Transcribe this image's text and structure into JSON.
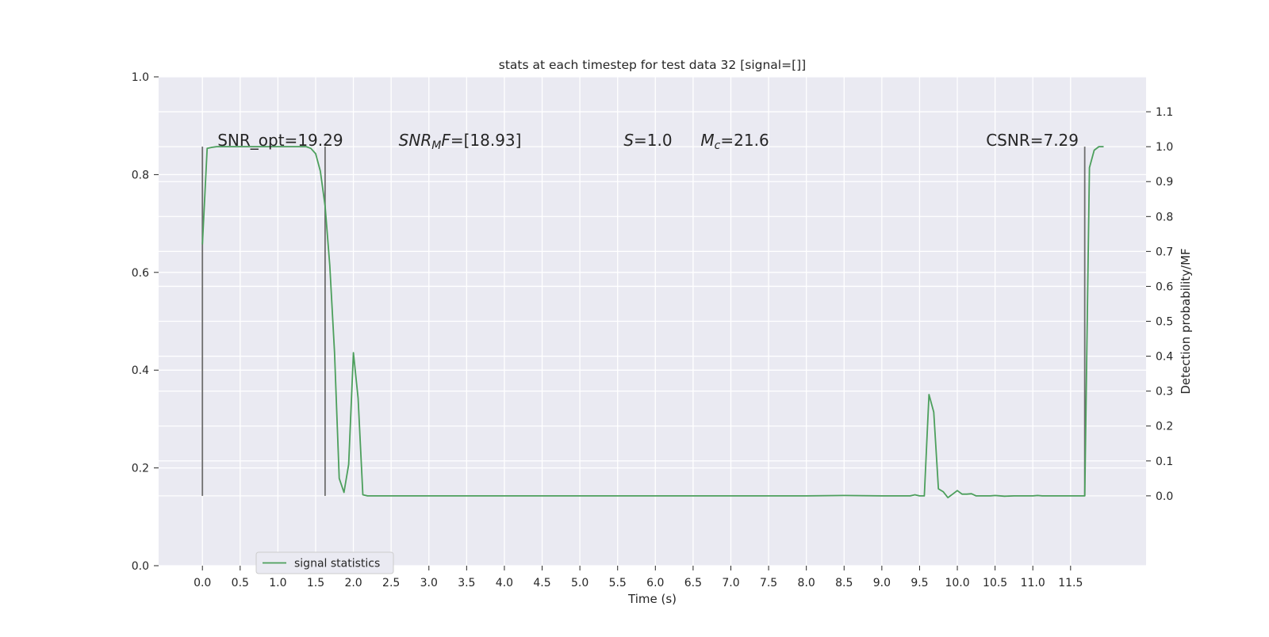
{
  "chart_data": {
    "type": "line",
    "title": "stats at each timestep for test data 32 [signal=[]]",
    "xlabel": "Time (s)",
    "ylabel_right": "Detection probability/MF",
    "xlim": [
      -0.58,
      12.5
    ],
    "ylim_left": [
      0.0,
      1.0
    ],
    "ylim_right": [
      -0.2,
      1.2
    ],
    "x_ticks": [
      0.0,
      0.5,
      1.0,
      1.5,
      2.0,
      2.5,
      3.0,
      3.5,
      4.0,
      4.5,
      5.0,
      5.5,
      6.0,
      6.5,
      7.0,
      7.5,
      8.0,
      8.5,
      9.0,
      9.5,
      10.0,
      10.5,
      11.0,
      11.5
    ],
    "x_tick_labels": [
      "0.0",
      "0.5",
      "1.0",
      "1.5",
      "2.0",
      "2.5",
      "3.0",
      "3.5",
      "4.0",
      "4.5",
      "5.0",
      "5.5",
      "6.0",
      "6.5",
      "7.0",
      "7.5",
      "8.0",
      "8.5",
      "9.0",
      "9.5",
      "10.0",
      "10.5",
      "11.0",
      "11.5"
    ],
    "y_left_ticks": [
      0.0,
      0.2,
      0.4,
      0.6,
      0.8,
      1.0
    ],
    "y_left_tick_labels": [
      "0.0",
      "0.2",
      "0.4",
      "0.6",
      "0.8",
      "1.0"
    ],
    "y_right_ticks": [
      0.0,
      0.1,
      0.2,
      0.3,
      0.4,
      0.5,
      0.6,
      0.7,
      0.8,
      0.9,
      1.0,
      1.1
    ],
    "y_right_tick_labels": [
      "0.0",
      "0.1",
      "0.2",
      "0.3",
      "0.4",
      "0.5",
      "0.6",
      "0.7",
      "0.8",
      "0.9",
      "1.0",
      "1.1"
    ],
    "grid": true,
    "background": "#eaeaf2",
    "series": [
      {
        "name": "signal statistics",
        "color": "#4c9f5c",
        "axis": "right",
        "x": [
          0.0,
          0.0625,
          0.125,
          0.1875,
          0.25,
          0.3125,
          0.375,
          0.5,
          0.75,
          1.0,
          1.25,
          1.375,
          1.4375,
          1.5,
          1.5625,
          1.625,
          1.6875,
          1.75,
          1.8125,
          1.875,
          1.9375,
          2.0,
          2.0625,
          2.125,
          2.1875,
          2.25,
          2.5,
          3.0,
          4.0,
          5.0,
          6.0,
          7.0,
          8.0,
          8.5,
          9.0,
          9.375,
          9.4375,
          9.5,
          9.5625,
          9.625,
          9.6875,
          9.75,
          9.8125,
          9.875,
          9.9375,
          10.0,
          10.0625,
          10.125,
          10.1875,
          10.25,
          10.375,
          10.4375,
          10.5,
          10.625,
          10.75,
          10.875,
          11.0,
          11.0625,
          11.125,
          11.25,
          11.5,
          11.6875,
          11.75,
          11.8125,
          11.875,
          11.9375
        ],
        "y": [
          0.72,
          0.995,
          0.998,
          1.0,
          1.0,
          1.0,
          1.0,
          1.0,
          1.0,
          1.0,
          1.0,
          1.0,
          0.995,
          0.98,
          0.93,
          0.83,
          0.66,
          0.41,
          0.05,
          0.01,
          0.09,
          0.41,
          0.28,
          0.003,
          0.0,
          0.0,
          0.0,
          0.0,
          0.0,
          0.0,
          0.0,
          0.0,
          0.0,
          0.001,
          0.0,
          0.0,
          0.003,
          0.0,
          0.0,
          0.29,
          0.24,
          0.02,
          0.012,
          -0.005,
          0.005,
          0.015,
          0.005,
          0.005,
          0.006,
          0.0,
          0.0,
          0.0,
          0.001,
          -0.001,
          0.0,
          0.0,
          0.0,
          0.001,
          0.0,
          0.0,
          0.0,
          0.0,
          0.94,
          0.99,
          1.0,
          1.0
        ]
      }
    ],
    "vlines": [
      {
        "x": 0.0,
        "y0": 0.0,
        "y1": 1.0,
        "axis": "right",
        "color": "#6e6e6e"
      },
      {
        "x": 1.625,
        "y0": 0.0,
        "y1": 1.0,
        "axis": "right",
        "color": "#6e6e6e"
      },
      {
        "x": 11.6875,
        "y0": 0.0,
        "y1": 1.0,
        "axis": "right",
        "color": "#6e6e6e"
      }
    ],
    "annotations": [
      {
        "text": "SNR_opt=19.29",
        "x": 0.2,
        "y": 1.0,
        "axis": "right",
        "style": "normal"
      },
      {
        "text": "SNR_MF=[18.93]",
        "x": 2.6,
        "y": 1.0,
        "axis": "right",
        "style": "math_snr"
      },
      {
        "text": "S=1.0",
        "x": 5.58,
        "y": 1.0,
        "axis": "right",
        "style": "math_s"
      },
      {
        "text": "M_c=21.6",
        "x": 6.6,
        "y": 1.0,
        "axis": "right",
        "style": "math_mc"
      },
      {
        "text": "CSNR=7.29",
        "x": 10.38,
        "y": 1.0,
        "axis": "right",
        "style": "normal"
      }
    ],
    "legend": {
      "position": "lower-left",
      "label": "signal statistics"
    }
  }
}
